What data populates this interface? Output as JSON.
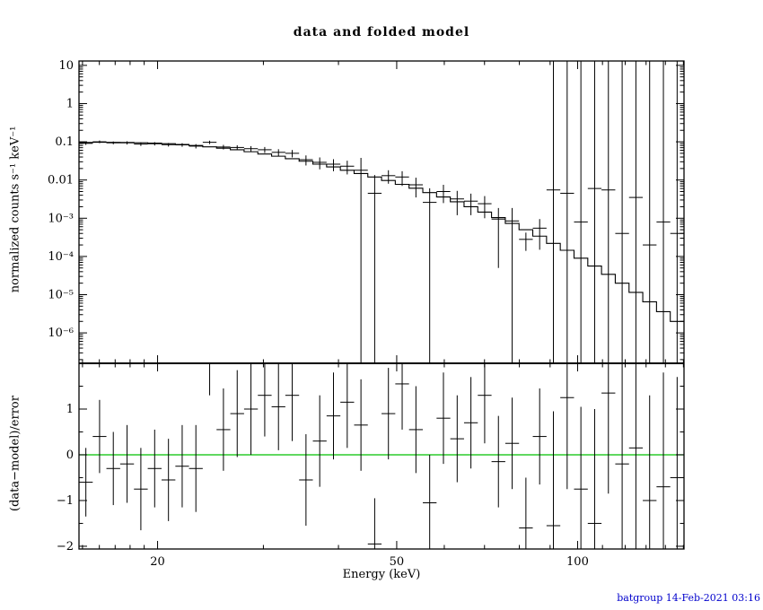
{
  "footer": {
    "credit": "batgroup 14-Feb-2021 03:16",
    "color": "#0000cc"
  },
  "colors": {
    "foreground": "#000000",
    "background": "#ffffff",
    "zero_line": "#00c000",
    "credit_text": "#0000cc"
  },
  "chart_data": [
    {
      "type": "scatter",
      "panel": "spectrum",
      "title": "data and folded model",
      "xlabel": "Energy (keV)",
      "ylabel": "normalized counts s⁻¹ keV⁻¹",
      "xscale": "log",
      "yscale": "log",
      "xlim": [
        14.8,
        150.34
      ],
      "ylim": [
        1.6e-07,
        13
      ],
      "x_major_ticks": [
        20,
        50,
        100
      ],
      "x_major_labels": [
        "20",
        "50",
        "100"
      ],
      "x_minor_ticks": [
        15,
        16,
        17,
        18,
        19,
        30,
        40,
        60,
        70,
        80,
        90,
        110,
        120,
        130,
        140,
        150
      ],
      "y_major_ticks": [
        10,
        1,
        0.1,
        0.01,
        0.001,
        0.0001,
        1e-05,
        1e-06
      ],
      "y_major_labels": [
        "10",
        "1",
        "0.1",
        "0.01",
        "10⁻³",
        "10⁻⁴",
        "10⁻⁵",
        "10⁻⁶"
      ],
      "grid": false,
      "legend": "none",
      "bin_edges": [
        14.8,
        15.6,
        16.44,
        17.33,
        18.27,
        19.26,
        20.31,
        21.41,
        22.56,
        23.78,
        25.07,
        26.43,
        27.86,
        29.37,
        30.96,
        32.63,
        34.4,
        36.26,
        38.22,
        40.29,
        42.47,
        44.76,
        47.18,
        49.73,
        52.42,
        55.26,
        58.25,
        61.4,
        64.72,
        68.22,
        71.91,
        75.8,
        79.9,
        84.22,
        88.78,
        93.58,
        98.64,
        103.98,
        109.6,
        115.53,
        121.78,
        128.37,
        135.31,
        142.63,
        150.34
      ],
      "x_centers": [
        15.19,
        16.01,
        16.88,
        17.79,
        18.76,
        19.78,
        20.85,
        21.98,
        23.16,
        24.42,
        25.74,
        27.14,
        28.6,
        30.15,
        31.78,
        33.5,
        35.32,
        37.23,
        39.24,
        41.37,
        43.6,
        45.96,
        48.44,
        51.06,
        53.82,
        56.73,
        59.8,
        63.03,
        66.44,
        70.03,
        73.82,
        77.81,
        82.03,
        86.46,
        91.14,
        96.07,
        101.27,
        106.75,
        112.52,
        118.61,
        125.04,
        131.8,
        138.93,
        146.44
      ],
      "series": [
        {
          "name": "data",
          "style": "errorbar",
          "color": "#000000",
          "y": [
            0.091,
            0.1,
            0.094,
            0.094,
            0.087,
            0.089,
            0.084,
            0.083,
            0.077,
            0.097,
            0.073,
            0.071,
            0.066,
            0.062,
            0.053,
            0.05,
            0.034,
            0.029,
            0.026,
            0.023,
            0.018,
            0.0045,
            0.013,
            0.012,
            0.0075,
            0.0026,
            0.005,
            0.0032,
            0.0028,
            0.0024,
            0.00095,
            0.00085,
            0.00028,
            0.00055,
            0.0055,
            0.0045,
            0.0008,
            0.006,
            0.0055,
            0.0004,
            0.0035,
            0.0002,
            0.0008,
            0.0004
          ],
          "yerr": [
            0.008,
            0.008,
            0.008,
            0.009,
            0.009,
            0.009,
            0.009,
            0.009,
            0.01,
            0.01,
            0.01,
            0.01,
            0.011,
            0.011,
            0.011,
            0.011,
            0.01,
            0.01,
            0.009,
            0.009,
            0.02,
            0.009,
            0.005,
            0.005,
            0.004,
            0.0035,
            0.0025,
            0.002,
            0.0016,
            0.0014,
            0.0009,
            0.001,
            0.00014,
            0.0004,
            15,
            15,
            15,
            15,
            15,
            15,
            15,
            15,
            15,
            15
          ]
        },
        {
          "name": "folded model",
          "style": "step",
          "color": "#000000",
          "y": [
            0.096,
            0.097,
            0.097,
            0.096,
            0.094,
            0.092,
            0.089,
            0.085,
            0.08,
            0.074,
            0.068,
            0.062,
            0.055,
            0.048,
            0.042,
            0.036,
            0.031,
            0.026,
            0.022,
            0.018,
            0.0148,
            0.012,
            0.0097,
            0.0077,
            0.0061,
            0.0047,
            0.0036,
            0.0027,
            0.002,
            0.00145,
            0.00104,
            0.00073,
            0.0005,
            0.00034,
            0.00022,
            0.000145,
            9e-05,
            5.6e-05,
            3.4e-05,
            2e-05,
            1.15e-05,
            6.5e-06,
            3.6e-06,
            2e-06
          ]
        }
      ]
    },
    {
      "type": "scatter",
      "panel": "residuals",
      "ylabel": "(data−model)/error",
      "xscale": "log",
      "yscale": "linear",
      "ylim": [
        -2.06,
        2.0
      ],
      "y_major_ticks": [
        1,
        0,
        -1,
        -2
      ],
      "y_major_labels": [
        "1",
        "0",
        "−1",
        "−2"
      ],
      "y_minor_ticks": [
        1.5,
        0.5,
        -0.5,
        -1.5
      ],
      "zero_line": {
        "y": 0,
        "color": "#00c000"
      },
      "series": [
        {
          "name": "(data−model)/error",
          "style": "errorbar",
          "color": "#000000",
          "y": [
            -0.6,
            0.4,
            -0.3,
            -0.2,
            -0.75,
            -0.3,
            -0.55,
            -0.25,
            -0.3,
            2.3,
            0.55,
            0.9,
            1.0,
            1.3,
            1.05,
            1.3,
            -0.55,
            0.3,
            0.85,
            1.15,
            0.65,
            -1.95,
            0.9,
            1.55,
            0.55,
            -1.05,
            0.8,
            0.35,
            0.7,
            1.3,
            -0.15,
            0.25,
            -1.6,
            0.4,
            -1.55,
            1.25,
            -0.75,
            -1.5,
            1.35,
            -0.2,
            0.15,
            -1.0,
            -0.7,
            -0.5
          ],
          "yerr": [
            0.75,
            0.8,
            0.8,
            0.85,
            0.9,
            0.85,
            0.9,
            0.9,
            0.95,
            1.0,
            0.9,
            0.95,
            1.0,
            0.9,
            0.95,
            1.0,
            1.0,
            1.0,
            0.95,
            1.0,
            1.0,
            1.0,
            1.0,
            1.0,
            0.95,
            1.05,
            1.0,
            0.95,
            1.0,
            1.05,
            1.0,
            1.0,
            1.1,
            1.05,
            2.5,
            2.0,
            1.8,
            2.5,
            2.2,
            2.4,
            2.6,
            2.3,
            2.5,
            2.2
          ]
        }
      ]
    }
  ]
}
